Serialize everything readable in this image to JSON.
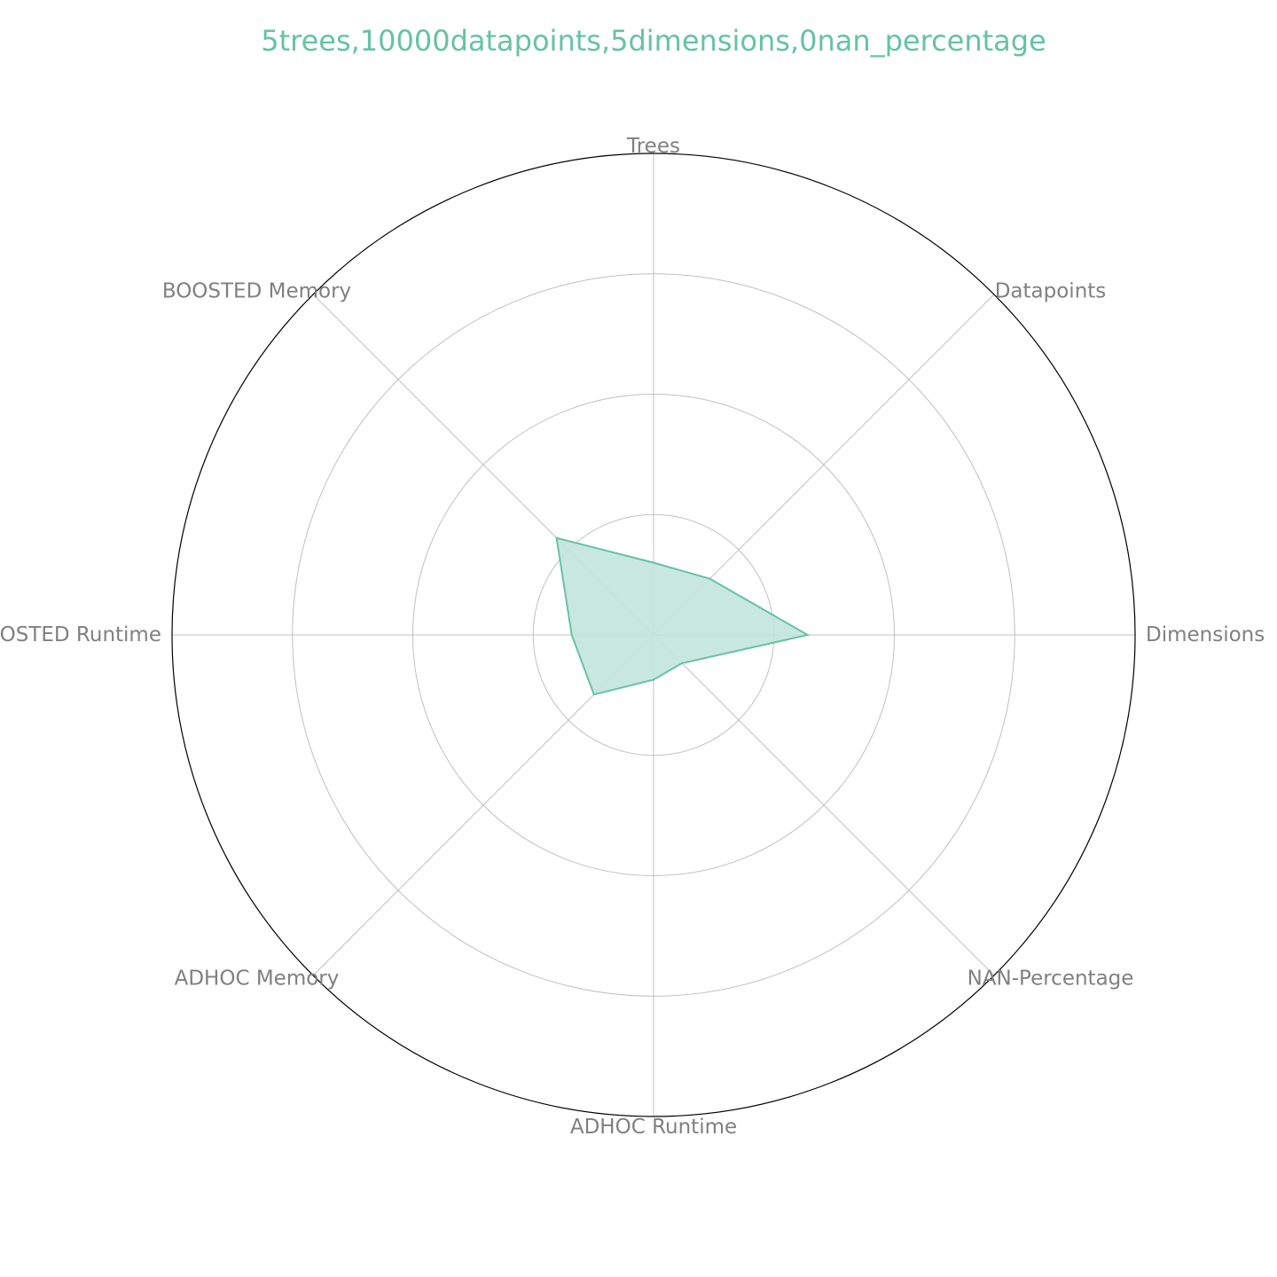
{
  "chart_data": {
    "type": "radar",
    "title": "5trees,10000datapoints,5dimensions,0nan_percentage",
    "axes": [
      "Trees",
      "Datapoints",
      "Dimensions",
      "NAN-Percentage",
      "ADHOC Runtime",
      "ADHOC Memory",
      "BOOSTED Runtime",
      "BOOSTED Memory"
    ],
    "rticks": [
      0.25,
      0.5,
      0.75,
      1.0
    ],
    "rlim": [
      0,
      1.0
    ],
    "grid": true,
    "series": [
      {
        "values": [
          0.15,
          0.165,
          0.32,
          0.083,
          0.093,
          0.175,
          0.17,
          0.285
        ]
      }
    ],
    "colors": {
      "series": "#66c2a5",
      "fill": "#c2e6db",
      "grid": "#c0c0c0",
      "outer": "#000000",
      "label": "#808080"
    }
  }
}
